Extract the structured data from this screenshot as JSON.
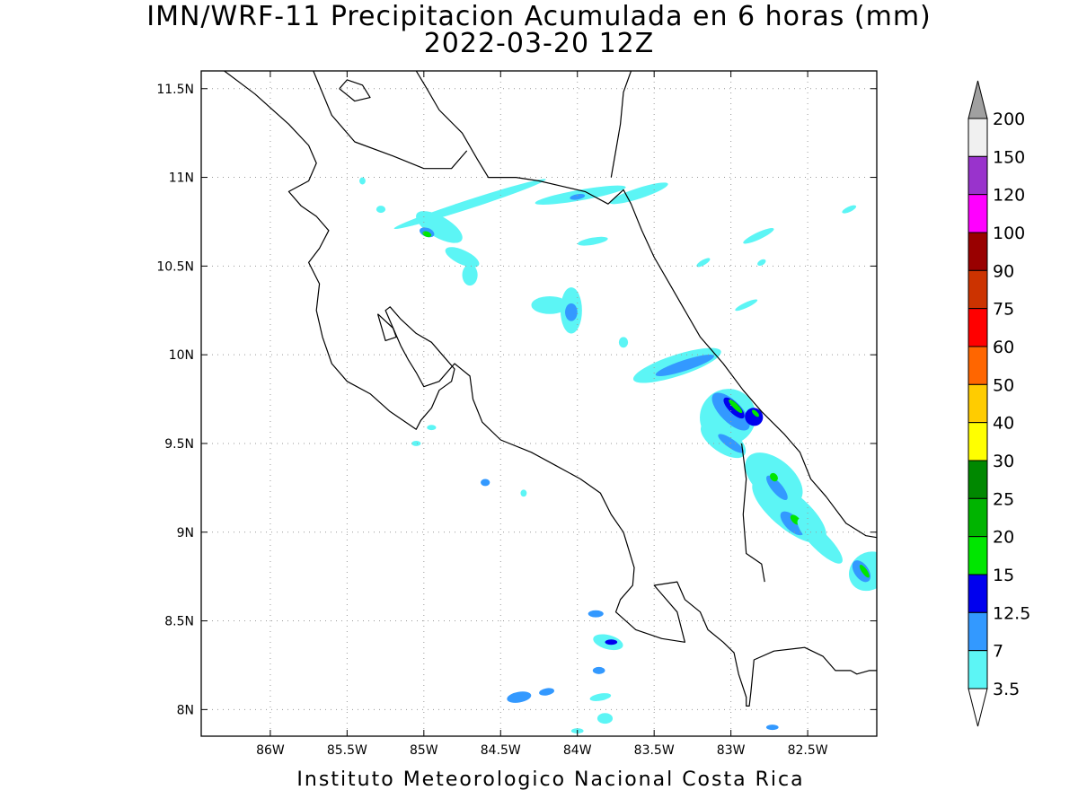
{
  "title": {
    "line1": "IMN/WRF-11 Precipitacion Acumulada en 6 horas (mm)",
    "line2": "2022-03-20 12Z"
  },
  "footer": "Instituto Meteorologico Nacional Costa Rica",
  "map": {
    "lon_range": [
      -86.45,
      -82.05
    ],
    "lat_range": [
      7.85,
      11.6
    ],
    "x_ticks": [
      {
        "lon": -86.0,
        "label": "86W"
      },
      {
        "lon": -85.5,
        "label": "85.5W"
      },
      {
        "lon": -85.0,
        "label": "85W"
      },
      {
        "lon": -84.5,
        "label": "84.5W"
      },
      {
        "lon": -84.0,
        "label": "84W"
      },
      {
        "lon": -83.5,
        "label": "83.5W"
      },
      {
        "lon": -83.0,
        "label": "83W"
      },
      {
        "lon": -82.5,
        "label": "82.5W"
      }
    ],
    "y_ticks": [
      {
        "lat": 8.0,
        "label": "8N"
      },
      {
        "lat": 8.5,
        "label": "8.5N"
      },
      {
        "lat": 9.0,
        "label": "9N"
      },
      {
        "lat": 9.5,
        "label": "9.5N"
      },
      {
        "lat": 10.0,
        "label": "10N"
      },
      {
        "lat": 10.5,
        "label": "10.5N"
      },
      {
        "lat": 11.0,
        "label": "11N"
      },
      {
        "lat": 11.5,
        "label": "11.5N"
      }
    ],
    "grid": "dotted",
    "coastlines": [
      [
        [
          -86.3,
          11.6
        ],
        [
          -86.1,
          11.47
        ],
        [
          -85.88,
          11.3
        ],
        [
          -85.75,
          11.18
        ],
        [
          -85.7,
          11.08
        ],
        [
          -85.75,
          10.98
        ],
        [
          -85.88,
          10.92
        ],
        [
          -85.8,
          10.84
        ],
        [
          -85.7,
          10.78
        ],
        [
          -85.62,
          10.7
        ],
        [
          -85.68,
          10.6
        ],
        [
          -85.75,
          10.52
        ],
        [
          -85.68,
          10.4
        ],
        [
          -85.7,
          10.25
        ],
        [
          -85.66,
          10.1
        ],
        [
          -85.6,
          9.95
        ],
        [
          -85.5,
          9.85
        ],
        [
          -85.35,
          9.78
        ],
        [
          -85.22,
          9.68
        ],
        [
          -85.05,
          9.58
        ],
        [
          -85.02,
          9.63
        ],
        [
          -84.95,
          9.7
        ],
        [
          -84.9,
          9.8
        ],
        [
          -84.82,
          9.85
        ],
        [
          -84.8,
          9.92
        ],
        [
          -84.88,
          10.0
        ],
        [
          -84.95,
          10.07
        ],
        [
          -85.05,
          10.12
        ],
        [
          -85.15,
          10.2
        ],
        [
          -85.22,
          10.27
        ],
        [
          -85.25,
          10.25
        ],
        [
          -85.15,
          10.05
        ],
        [
          -85.1,
          9.97
        ],
        [
          -85.05,
          9.9
        ],
        [
          -85.0,
          9.82
        ],
        [
          -84.9,
          9.85
        ],
        [
          -84.8,
          9.95
        ],
        [
          -84.7,
          9.88
        ],
        [
          -84.68,
          9.75
        ],
        [
          -84.62,
          9.62
        ],
        [
          -84.5,
          9.52
        ],
        [
          -84.3,
          9.45
        ],
        [
          -84.15,
          9.38
        ],
        [
          -83.98,
          9.3
        ],
        [
          -83.85,
          9.22
        ],
        [
          -83.78,
          9.1
        ],
        [
          -83.7,
          9.0
        ],
        [
          -83.63,
          8.8
        ],
        [
          -83.64,
          8.7
        ],
        [
          -83.72,
          8.62
        ],
        [
          -83.75,
          8.55
        ],
        [
          -83.62,
          8.45
        ],
        [
          -83.45,
          8.4
        ],
        [
          -83.3,
          8.38
        ],
        [
          -83.35,
          8.55
        ],
        [
          -83.45,
          8.65
        ],
        [
          -83.5,
          8.7
        ],
        [
          -83.35,
          8.72
        ],
        [
          -83.3,
          8.62
        ],
        [
          -83.2,
          8.55
        ],
        [
          -83.15,
          8.45
        ],
        [
          -83.05,
          8.38
        ],
        [
          -82.98,
          8.32
        ],
        [
          -82.95,
          8.2
        ],
        [
          -82.9,
          8.07
        ],
        [
          -82.9,
          8.02
        ],
        [
          -82.88,
          8.02
        ],
        [
          -82.87,
          8.1
        ],
        [
          -82.85,
          8.28
        ],
        [
          -82.72,
          8.33
        ],
        [
          -82.52,
          8.35
        ],
        [
          -82.4,
          8.3
        ],
        [
          -82.32,
          8.22
        ],
        [
          -82.22,
          8.22
        ],
        [
          -82.18,
          8.2
        ],
        [
          -82.1,
          8.22
        ],
        [
          -82.05,
          8.22
        ]
      ],
      [
        [
          -85.05,
          11.6
        ],
        [
          -84.98,
          11.5
        ],
        [
          -84.9,
          11.38
        ],
        [
          -84.75,
          11.25
        ],
        [
          -84.65,
          11.1
        ],
        [
          -84.58,
          11.0
        ],
        [
          -84.4,
          11.0
        ],
        [
          -84.25,
          10.98
        ],
        [
          -84.1,
          10.95
        ],
        [
          -83.95,
          10.92
        ],
        [
          -83.8,
          10.85
        ],
        [
          -83.7,
          10.93
        ],
        [
          -83.65,
          10.85
        ],
        [
          -83.58,
          10.7
        ],
        [
          -83.5,
          10.55
        ],
        [
          -83.4,
          10.4
        ],
        [
          -83.3,
          10.25
        ],
        [
          -83.2,
          10.1
        ],
        [
          -83.05,
          9.95
        ],
        [
          -82.92,
          9.8
        ],
        [
          -82.8,
          9.68
        ],
        [
          -82.65,
          9.55
        ],
        [
          -82.6,
          9.5
        ],
        [
          -82.55,
          9.45
        ],
        [
          -82.48,
          9.3
        ],
        [
          -82.38,
          9.2
        ],
        [
          -82.25,
          9.05
        ],
        [
          -82.12,
          8.98
        ],
        [
          -82.05,
          8.97
        ]
      ],
      [
        [
          -83.65,
          11.6
        ],
        [
          -83.7,
          11.48
        ],
        [
          -83.72,
          11.3
        ],
        [
          -83.75,
          11.15
        ],
        [
          -83.78,
          11.0
        ]
      ],
      [
        [
          -85.72,
          11.6
        ],
        [
          -85.6,
          11.35
        ],
        [
          -85.45,
          11.2
        ],
        [
          -85.2,
          11.12
        ],
        [
          -85.0,
          11.05
        ],
        [
          -84.82,
          11.05
        ],
        [
          -84.72,
          11.15
        ]
      ],
      [
        [
          -82.93,
          9.5
        ],
        [
          -82.9,
          9.3
        ],
        [
          -82.92,
          9.1
        ],
        [
          -82.9,
          8.88
        ],
        [
          -82.8,
          8.82
        ],
        [
          -82.78,
          8.72
        ]
      ],
      [
        [
          -85.55,
          11.5
        ],
        [
          -85.5,
          11.55
        ],
        [
          -85.4,
          11.52
        ],
        [
          -85.35,
          11.45
        ],
        [
          -85.45,
          11.43
        ],
        [
          -85.55,
          11.5
        ]
      ],
      [
        [
          -85.3,
          10.23
        ],
        [
          -85.2,
          10.15
        ],
        [
          -85.18,
          10.1
        ],
        [
          -85.25,
          10.08
        ],
        [
          -85.3,
          10.23
        ]
      ]
    ],
    "fill_levels": {
      "3.5": "#5cf5f5",
      "7": "#3399ff",
      "12.5": "#0000ee",
      "15": "#00e600",
      "20": "#00b400"
    },
    "precip_cells": [
      {
        "lon": -84.7,
        "lat": 10.85,
        "rx": 0.52,
        "ry": 0.025,
        "angle": 18,
        "level": "3.5"
      },
      {
        "lon": -83.98,
        "lat": 10.9,
        "rx": 0.3,
        "ry": 0.03,
        "angle": 10,
        "level": "3.5"
      },
      {
        "lon": -83.6,
        "lat": 10.91,
        "rx": 0.2,
        "ry": 0.03,
        "angle": 18,
        "level": "3.5"
      },
      {
        "lon": -84.0,
        "lat": 10.89,
        "rx": 0.05,
        "ry": 0.015,
        "angle": 10,
        "level": "7"
      },
      {
        "lon": -84.9,
        "lat": 10.72,
        "rx": 0.17,
        "ry": 0.06,
        "angle": -30,
        "level": "3.5"
      },
      {
        "lon": -84.98,
        "lat": 10.69,
        "rx": 0.05,
        "ry": 0.025,
        "angle": -20,
        "level": "7"
      },
      {
        "lon": -84.98,
        "lat": 10.68,
        "rx": 0.03,
        "ry": 0.015,
        "angle": -20,
        "level": "15"
      },
      {
        "lon": -84.75,
        "lat": 10.55,
        "rx": 0.12,
        "ry": 0.04,
        "angle": -25,
        "level": "3.5"
      },
      {
        "lon": -84.7,
        "lat": 10.45,
        "rx": 0.05,
        "ry": 0.06,
        "angle": 0,
        "level": "3.5"
      },
      {
        "lon": -85.28,
        "lat": 10.82,
        "rx": 0.03,
        "ry": 0.02,
        "angle": 0,
        "level": "3.5"
      },
      {
        "lon": -85.4,
        "lat": 10.98,
        "rx": 0.02,
        "ry": 0.02,
        "angle": 0,
        "level": "3.5"
      },
      {
        "lon": -83.9,
        "lat": 10.64,
        "rx": 0.1,
        "ry": 0.02,
        "angle": 10,
        "level": "3.5"
      },
      {
        "lon": -82.82,
        "lat": 10.67,
        "rx": 0.11,
        "ry": 0.02,
        "angle": 25,
        "level": "3.5"
      },
      {
        "lon": -82.23,
        "lat": 10.82,
        "rx": 0.05,
        "ry": 0.015,
        "angle": 25,
        "level": "3.5"
      },
      {
        "lon": -83.18,
        "lat": 10.52,
        "rx": 0.05,
        "ry": 0.015,
        "angle": 30,
        "level": "3.5"
      },
      {
        "lon": -82.8,
        "lat": 10.52,
        "rx": 0.03,
        "ry": 0.015,
        "angle": 30,
        "level": "3.5"
      },
      {
        "lon": -84.18,
        "lat": 10.28,
        "rx": 0.12,
        "ry": 0.05,
        "angle": 0,
        "level": "3.5"
      },
      {
        "lon": -84.04,
        "lat": 10.25,
        "rx": 0.07,
        "ry": 0.13,
        "angle": 0,
        "level": "3.5"
      },
      {
        "lon": -84.04,
        "lat": 10.24,
        "rx": 0.04,
        "ry": 0.05,
        "angle": 0,
        "level": "7"
      },
      {
        "lon": -82.9,
        "lat": 10.28,
        "rx": 0.08,
        "ry": 0.015,
        "angle": 25,
        "level": "3.5"
      },
      {
        "lon": -83.35,
        "lat": 9.94,
        "rx": 0.3,
        "ry": 0.06,
        "angle": 18,
        "level": "3.5"
      },
      {
        "lon": -83.3,
        "lat": 9.94,
        "rx": 0.2,
        "ry": 0.03,
        "angle": 18,
        "level": "7"
      },
      {
        "lon": -83.7,
        "lat": 10.07,
        "rx": 0.03,
        "ry": 0.03,
        "angle": 0,
        "level": "3.5"
      },
      {
        "lon": -83.02,
        "lat": 9.65,
        "rx": 0.18,
        "ry": 0.16,
        "angle": -45,
        "level": "3.5"
      },
      {
        "lon": -83.0,
        "lat": 9.68,
        "rx": 0.16,
        "ry": 0.06,
        "angle": -45,
        "level": "7"
      },
      {
        "lon": -82.98,
        "lat": 9.7,
        "rx": 0.09,
        "ry": 0.03,
        "angle": -45,
        "level": "12.5"
      },
      {
        "lon": -82.97,
        "lat": 9.71,
        "rx": 0.06,
        "ry": 0.015,
        "angle": -45,
        "level": "15"
      },
      {
        "lon": -82.85,
        "lat": 9.65,
        "rx": 0.06,
        "ry": 0.05,
        "angle": -45,
        "level": "12.5"
      },
      {
        "lon": -82.84,
        "lat": 9.67,
        "rx": 0.03,
        "ry": 0.012,
        "angle": -45,
        "level": "15"
      },
      {
        "lon": -83.05,
        "lat": 9.52,
        "rx": 0.17,
        "ry": 0.07,
        "angle": -35,
        "level": "3.5"
      },
      {
        "lon": -83.0,
        "lat": 9.5,
        "rx": 0.1,
        "ry": 0.025,
        "angle": -35,
        "level": "7"
      },
      {
        "lon": -82.72,
        "lat": 9.3,
        "rx": 0.22,
        "ry": 0.11,
        "angle": -40,
        "level": "3.5"
      },
      {
        "lon": -82.62,
        "lat": 9.12,
        "rx": 0.3,
        "ry": 0.1,
        "angle": -40,
        "level": "3.5"
      },
      {
        "lon": -82.7,
        "lat": 9.25,
        "rx": 0.1,
        "ry": 0.03,
        "angle": -50,
        "level": "7"
      },
      {
        "lon": -82.72,
        "lat": 9.31,
        "rx": 0.03,
        "ry": 0.02,
        "angle": -50,
        "level": "15"
      },
      {
        "lon": -82.6,
        "lat": 9.05,
        "rx": 0.1,
        "ry": 0.04,
        "angle": -45,
        "level": "7"
      },
      {
        "lon": -82.58,
        "lat": 9.07,
        "rx": 0.04,
        "ry": 0.02,
        "angle": -45,
        "level": "15"
      },
      {
        "lon": -82.5,
        "lat": 8.99,
        "rx": 0.03,
        "ry": 0.015,
        "angle": -45,
        "level": "15"
      },
      {
        "lon": -82.42,
        "lat": 8.95,
        "rx": 0.2,
        "ry": 0.05,
        "angle": -45,
        "level": "3.5"
      },
      {
        "lon": -82.1,
        "lat": 8.78,
        "rx": 0.12,
        "ry": 0.12,
        "angle": -50,
        "level": "3.5"
      },
      {
        "lon": -82.15,
        "lat": 8.78,
        "rx": 0.08,
        "ry": 0.04,
        "angle": -55,
        "level": "7"
      },
      {
        "lon": -82.13,
        "lat": 8.78,
        "rx": 0.05,
        "ry": 0.015,
        "angle": -55,
        "level": "15"
      },
      {
        "lon": -84.95,
        "lat": 9.59,
        "rx": 0.03,
        "ry": 0.015,
        "angle": 0,
        "level": "3.5"
      },
      {
        "lon": -85.05,
        "lat": 9.5,
        "rx": 0.03,
        "ry": 0.015,
        "angle": 0,
        "level": "3.5"
      },
      {
        "lon": -84.6,
        "lat": 9.28,
        "rx": 0.03,
        "ry": 0.02,
        "angle": 0,
        "level": "7"
      },
      {
        "lon": -84.35,
        "lat": 9.22,
        "rx": 0.02,
        "ry": 0.02,
        "angle": 0,
        "level": "3.5"
      },
      {
        "lon": -83.88,
        "lat": 8.54,
        "rx": 0.05,
        "ry": 0.02,
        "angle": 0,
        "level": "7"
      },
      {
        "lon": -83.8,
        "lat": 8.38,
        "rx": 0.1,
        "ry": 0.04,
        "angle": -15,
        "level": "3.5"
      },
      {
        "lon": -83.78,
        "lat": 8.38,
        "rx": 0.04,
        "ry": 0.015,
        "angle": 0,
        "level": "12.5"
      },
      {
        "lon": -83.86,
        "lat": 8.22,
        "rx": 0.04,
        "ry": 0.02,
        "angle": 0,
        "level": "7"
      },
      {
        "lon": -84.38,
        "lat": 8.07,
        "rx": 0.08,
        "ry": 0.03,
        "angle": 10,
        "level": "7"
      },
      {
        "lon": -84.2,
        "lat": 8.1,
        "rx": 0.05,
        "ry": 0.02,
        "angle": 10,
        "level": "7"
      },
      {
        "lon": -83.85,
        "lat": 8.07,
        "rx": 0.07,
        "ry": 0.02,
        "angle": 10,
        "level": "3.5"
      },
      {
        "lon": -83.82,
        "lat": 7.95,
        "rx": 0.05,
        "ry": 0.03,
        "angle": 0,
        "level": "3.5"
      },
      {
        "lon": -82.73,
        "lat": 7.9,
        "rx": 0.04,
        "ry": 0.015,
        "angle": 0,
        "level": "7"
      },
      {
        "lon": -84.0,
        "lat": 7.88,
        "rx": 0.04,
        "ry": 0.015,
        "angle": 0,
        "level": "3.5"
      }
    ]
  },
  "colorbar": {
    "labels": [
      "200",
      "150",
      "120",
      "100",
      "90",
      "75",
      "60",
      "50",
      "40",
      "30",
      "25",
      "20",
      "15",
      "12.5",
      "7",
      "3.5"
    ],
    "colors": [
      "#f0f0f0",
      "#9933cc",
      "#ff00ff",
      "#990000",
      "#cc3300",
      "#ff0000",
      "#ff6600",
      "#ffcc00",
      "#ffff00",
      "#008800",
      "#00b400",
      "#00e600",
      "#0000ee",
      "#3399ff",
      "#5cf5f5"
    ],
    "over_color": "#a0a0a0",
    "under_color": "#ffffff"
  }
}
